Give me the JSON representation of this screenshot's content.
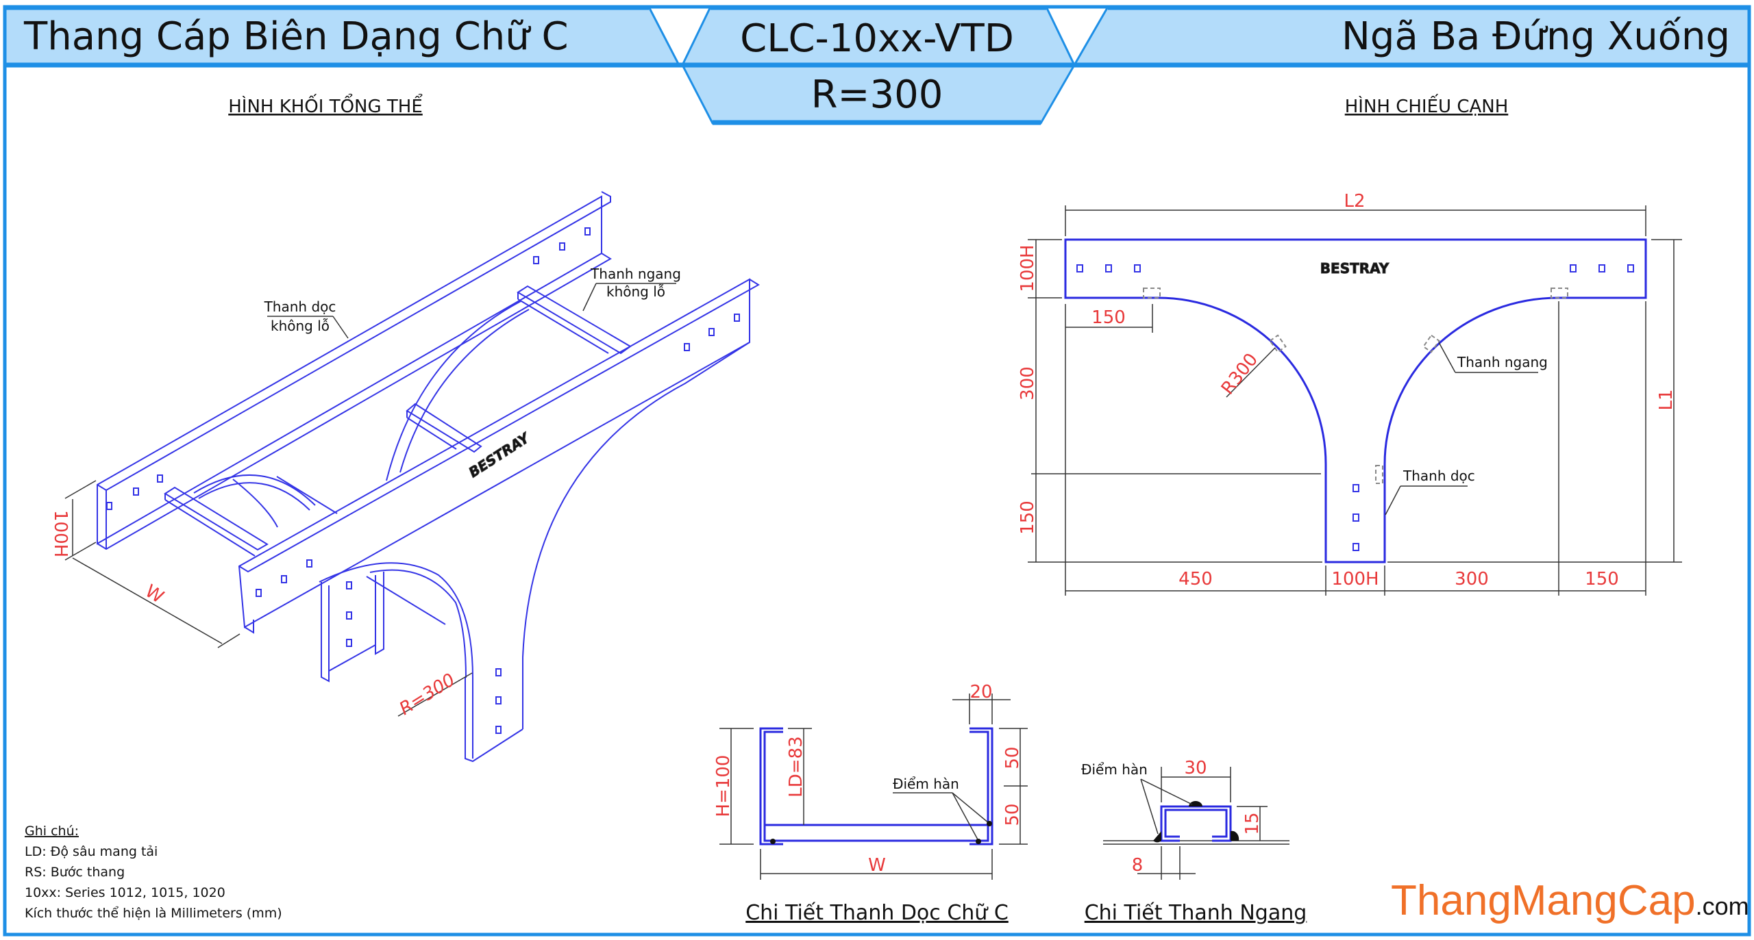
{
  "header": {
    "left_title": "Thang Cáp Biên Dạng Chữ C",
    "code": "CLC-10xx-VTD",
    "radius": "R=300",
    "right_title": "Ngã Ba Đứng Xuống"
  },
  "colors": {
    "header_fill": "#b3dcfa",
    "border": "#1e8fe6",
    "drawing_line": "#3434e6",
    "dimension_text": "#e8393a",
    "logo": "#f07028"
  },
  "iso_view": {
    "title": "HÌNH KHỐI TỔNG THỂ",
    "label_rail_1": "Thanh dọc",
    "label_rail_2": "không lỗ",
    "label_rung_1": "Thanh ngang",
    "label_rung_2": "không lỗ",
    "brand": "BESTRAY",
    "dim_height": "100H",
    "dim_width": "W",
    "dim_radius": "R=300"
  },
  "side_view": {
    "title": "HÌNH CHIẾU CẠNH",
    "dim_l2": "L2",
    "dim_l1": "L1",
    "dim_100h_left": "100H",
    "dim_300_left": "300",
    "dim_150_left": "150",
    "dim_150_top": "150",
    "dim_r300": "R300",
    "bottom_dims": [
      "450",
      "100H",
      "300",
      "150"
    ],
    "label_rung": "Thanh ngang",
    "label_rail": "Thanh dọc",
    "brand": "BESTRAY"
  },
  "c_detail": {
    "title": "Chi Tiết Thanh Dọc Chữ C",
    "dim_h": "H=100",
    "dim_ld": "LD=83",
    "dim_20": "20",
    "dim_50_top": "50",
    "dim_50_bottom": "50",
    "dim_w": "W",
    "weld_label": "Điểm hàn"
  },
  "rung_detail": {
    "title": "Chi Tiết Thanh Ngang",
    "dim_30": "30",
    "dim_15": "15",
    "dim_8": "8",
    "weld_label": "Điểm hàn"
  },
  "notes": {
    "heading": "Ghi chú:",
    "lines": [
      "LD: Độ sâu mang tải",
      "RS: Bước thang",
      "10xx: Series 1012, 1015, 1020",
      "Kích thước thể hiện là Millimeters (mm)"
    ]
  },
  "logo": {
    "main": "ThangMangCap",
    "suffix": ".com"
  }
}
